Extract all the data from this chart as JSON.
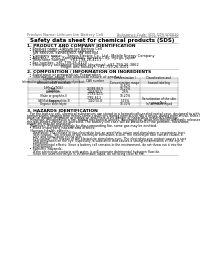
{
  "title": "Safety data sheet for chemical products (SDS)",
  "header_left": "Product Name: Lithium Ion Battery Cell",
  "header_right_line1": "Substance Code: SDS-GFR-000010",
  "header_right_line2": "Established / Revision: Dec.7,2016",
  "bg_color": "#ffffff",
  "section1_title": "1. PRODUCT AND COMPANY IDENTIFICATION",
  "section1_lines": [
    "  • Product name: Lithium Ion Battery Cell",
    "  • Product code: Cylindrical-type cell",
    "     SW 866500, SW 866900, SW 866904",
    "  • Company name:     Sanyo Electric Co., Ltd., Mobile Energy Company",
    "  • Address:   2001  Kamiakahon, Sumoto-City, Hyogo, Japan",
    "  • Telephone number:   +81-799-26-4111",
    "  • Fax number: +81-799-26-4120",
    "  • Emergency telephone number (daytime): +81-799-26-3862",
    "                              (Night and holiday): +81-799-26-4101"
  ],
  "section2_title": "2. COMPOSITION / INFORMATION ON INGREDIENTS",
  "section2_line1": "  • Substance or preparation: Preparation",
  "section2_line2": "  • Information about the chemical nature of product:",
  "table_header": [
    "Information about the chemical nature of product:",
    "CAS number",
    "Concentration /\nConcentration range",
    "Classification and\nhazard labeling"
  ],
  "table_subheader": "Common name",
  "table_rows": [
    [
      "Lithium cobalt tantalate\n(LiMn-CoTiO4)",
      "",
      "30-60%",
      ""
    ],
    [
      "Iron",
      "26388-88-9",
      "10-20%",
      ""
    ],
    [
      "Aluminium",
      "7429-90-5",
      "2-5%",
      ""
    ],
    [
      "Graphite\n(flake or graphite-I)\n(All flake or graphite-II)",
      "77782-42-5\n7782-44-2",
      "10-20%",
      ""
    ],
    [
      "Copper",
      "7440-50-8",
      "5-15%",
      "Sensitization of the skin\ngroup No.2"
    ],
    [
      "Organic electrolyte",
      "",
      "10-30%",
      "Inflammable liquid"
    ]
  ],
  "section3_title": "3. HAZARDS IDENTIFICATION",
  "section3_para1": "   For the battery cell, chemical substances are stored in a hermetically sealed metal case, designed to withstand",
  "section3_para2": "temperatures ranging from minus-some-conditions during normal use. As a result, during normal use, there is no",
  "section3_para3": "physical danger of ignition or explosion and there is no danger of hazardous materials leakage.",
  "section3_para4": "   However, if exposed to a fire, added mechanical shocks, decomposed, when electrolyte ordinarily releases,",
  "section3_para5": "the gas blades cannot be operated. The battery cell case will be breached of the portions; hazardous",
  "section3_para6": "materials may be released.",
  "section3_para7": "   Moreover, if heated strongly by the surrounding fire, some gas may be emitted.",
  "section3_bullet1": "  • Most important hazard and effects:",
  "section3_human": "   Human health effects:",
  "section3_human_lines": [
    "      Inhalation: The release of the electrolyte has an anesthetic action and stimulates in respiratory tract.",
    "      Skin contact: The release of the electrolyte stimulates a skin. The electrolyte skin contact causes a",
    "      sore and stimulation on the skin.",
    "      Eye contact: The release of the electrolyte stimulates eyes. The electrolyte eye contact causes a sore",
    "      and stimulation on the eye. Especially, a substance that causes a strong inflammation of the eye is",
    "      contained.",
    "      Environmental effects: Since a battery cell remains in the environment, do not throw out it into the",
    "      environment."
  ],
  "section3_bullet2": "  • Specific hazards:",
  "section3_specific_lines": [
    "      If the electrolyte contacts with water, it will generate detrimental hydrogen fluoride.",
    "      Since the used electrolyte is inflammable liquid, do not bring close to fire."
  ],
  "footer_line": "line"
}
